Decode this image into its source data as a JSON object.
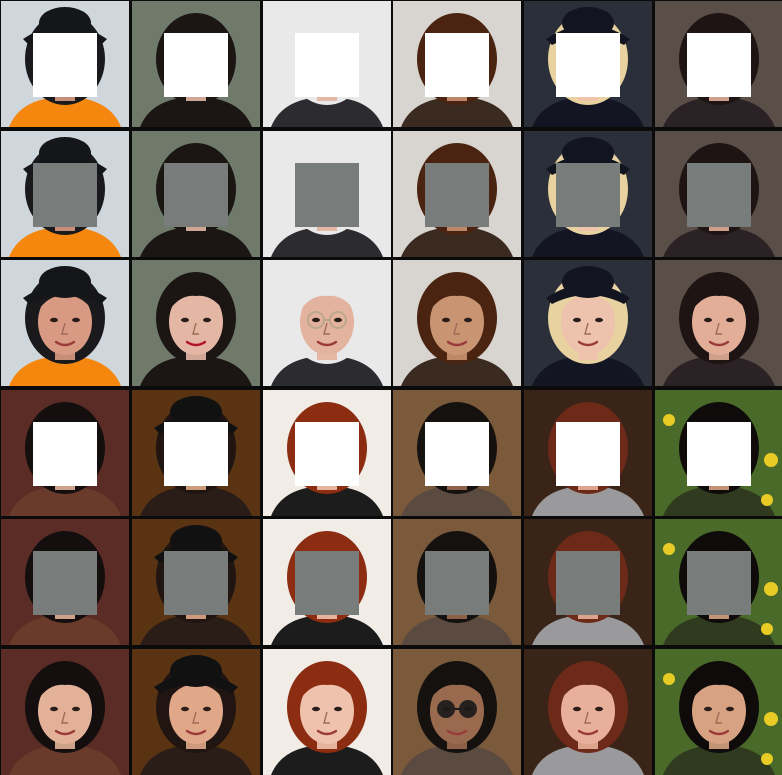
{
  "grid": {
    "columns": 6,
    "rows": 6
  },
  "row_types": [
    "white-mask",
    "gray-mask",
    "original",
    "white-mask",
    "gray-mask",
    "original"
  ],
  "mask_colors": {
    "white": "#ffffff",
    "gray": "#787c7b"
  },
  "faces": [
    {
      "name": "police-officer",
      "bg": "#cfd6dc",
      "skin": "#d99a83",
      "hair": "#1a1a1c",
      "cloth": "#f5870f",
      "hat": "#15161a"
    },
    {
      "name": "dark-hair-woman",
      "bg": "#6f7a6b",
      "skin": "#e4b6a4",
      "hair": "#1b1514",
      "cloth": "#1b1514",
      "lips": "#b0152a"
    },
    {
      "name": "older-man",
      "bg": "#e9e9ea",
      "skin": "#e4b39f",
      "hair": "#e9e9ea",
      "cloth": "#2b2b30",
      "glasses": "#b8a58a"
    },
    {
      "name": "curly-hair-man",
      "bg": "#d8d4d0",
      "skin": "#c99472",
      "hair": "#4a2410",
      "cloth": "#3a2a20"
    },
    {
      "name": "graduate-woman",
      "bg": "#2a2f3a",
      "skin": "#eec3ad",
      "hair": "#e7d2a0",
      "cloth": "#131622",
      "hat": "#121420"
    },
    {
      "name": "brunette-woman",
      "bg": "#5a4e48",
      "skin": "#e2ae98",
      "hair": "#1d1413",
      "cloth": "#2b2226"
    },
    {
      "name": "asian-woman",
      "bg": "#5a2c25",
      "skin": "#e2b198",
      "hair": "#140f0e",
      "cloth": "#6a3b2a"
    },
    {
      "name": "woman-with-bow",
      "bg": "#5a3312",
      "skin": "#e0a888",
      "hair": "#211512",
      "cloth": "#2a1d18",
      "hat": "#111111"
    },
    {
      "name": "red-hair-woman",
      "bg": "#f1ece6",
      "skin": "#efc2ad",
      "hair": "#8c2c11",
      "cloth": "#1c1c1c"
    },
    {
      "name": "sunglasses-man",
      "bg": "#7a5a3a",
      "skin": "#9a6a4e",
      "hair": "#14110f",
      "cloth": "#5a4a40",
      "glasses": "#1a1a1a"
    },
    {
      "name": "auburn-hair-girl",
      "bg": "#3a2418",
      "skin": "#e8b09a",
      "hair": "#6d2a18",
      "cloth": "#9a9a9c"
    },
    {
      "name": "smiling-child",
      "bg": "#4a6a2a",
      "skin": "#d7a281",
      "hair": "#0e0b0a",
      "cloth": "#2f3a1f",
      "accent": "#e8cc25"
    }
  ]
}
